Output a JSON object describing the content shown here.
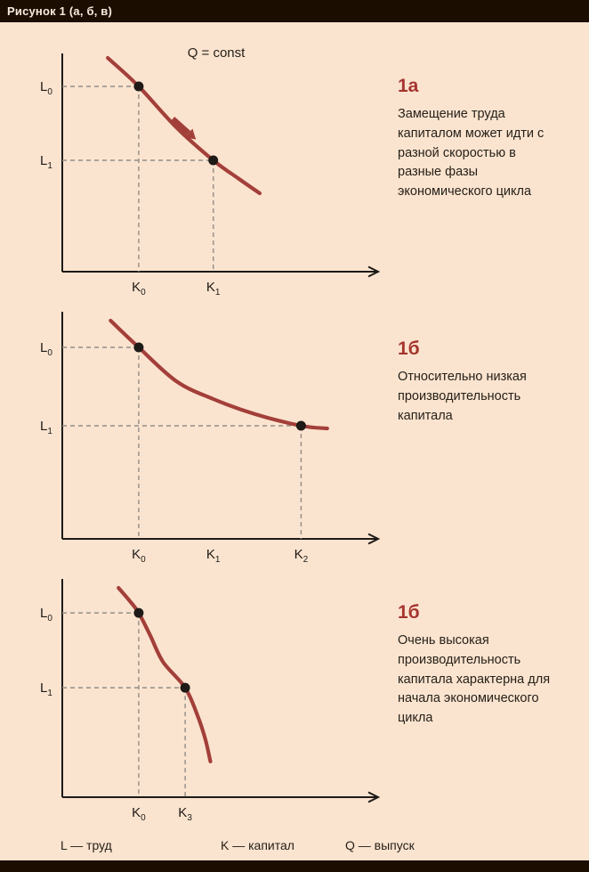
{
  "header": {
    "title": "Рисунок 1 (а, б, в)"
  },
  "legend": {
    "labor": "L — труд",
    "capital": "K — капитал",
    "output": "Q — выпуск"
  },
  "colors": {
    "background": "#fbe4cf",
    "bar": "#1c0d01",
    "curve": "#a33f3a",
    "point": "#1e1a17",
    "dash": "#928d88",
    "axis": "#1e1a17",
    "tag": "#a5342f",
    "text": "#262019"
  },
  "chart_data": [
    {
      "type": "line",
      "title": "Q = const",
      "xlabel": "K",
      "ylabel": "L",
      "x_tick_labels": [
        "K0",
        "K1"
      ],
      "y_tick_labels": [
        "L0",
        "L1"
      ],
      "note_tag": "1а",
      "note": "Замещение труда капиталом может идти с разной скоростью в разные фазы экономического цикла",
      "curve": [
        [
          0.144,
          0.04
        ],
        [
          0.242,
          0.168
        ],
        [
          0.361,
          0.352
        ],
        [
          0.478,
          0.5
        ],
        [
          0.556,
          0.58
        ],
        [
          0.625,
          0.648
        ]
      ],
      "points": [
        {
          "x": 0.242,
          "y": 0.168,
          "x_label": {
            "base": "K",
            "sub": "0"
          },
          "y_label": {
            "base": "L",
            "sub": "0"
          }
        },
        {
          "x": 0.478,
          "y": 0.5,
          "x_label": {
            "base": "K",
            "sub": "1"
          },
          "y_label": {
            "base": "L",
            "sub": "1"
          }
        }
      ],
      "extra_x_ticks": [],
      "arrow": {
        "x": 0.375,
        "y": 0.345,
        "angle_deg": 42
      }
    },
    {
      "type": "line",
      "title": "",
      "xlabel": "K",
      "ylabel": "L",
      "x_tick_labels": [
        "K0",
        "K1",
        "K2"
      ],
      "y_tick_labels": [
        "L0",
        "L1"
      ],
      "note_tag": "1б",
      "note": "Относительно низкая производительность капитала",
      "curve": [
        [
          0.153,
          0.02
        ],
        [
          0.242,
          0.14
        ],
        [
          0.361,
          0.292
        ],
        [
          0.478,
          0.372
        ],
        [
          0.611,
          0.44
        ],
        [
          0.756,
          0.492
        ],
        [
          0.839,
          0.504
        ]
      ],
      "points": [
        {
          "x": 0.242,
          "y": 0.14,
          "x_label": {
            "base": "K",
            "sub": "0"
          },
          "y_label": {
            "base": "L",
            "sub": "0"
          }
        },
        {
          "x": 0.756,
          "y": 0.492,
          "x_label": {
            "base": "K",
            "sub": "2"
          },
          "y_label": {
            "base": "L",
            "sub": "1"
          }
        }
      ],
      "extra_x_ticks": [
        {
          "x": 0.478,
          "label": {
            "base": "K",
            "sub": "1"
          }
        }
      ],
      "arrow": null
    },
    {
      "type": "line",
      "title": "",
      "xlabel": "K",
      "ylabel": "L",
      "x_tick_labels": [
        "K0",
        "K3"
      ],
      "y_tick_labels": [
        "L0",
        "L1"
      ],
      "note_tag": "1б",
      "note": "Очень высокая производительность капитала характерна для начала экономического цикла",
      "curve": [
        [
          0.178,
          0.021
        ],
        [
          0.214,
          0.083
        ],
        [
          0.242,
          0.138
        ],
        [
          0.278,
          0.242
        ],
        [
          0.319,
          0.367
        ],
        [
          0.389,
          0.488
        ],
        [
          0.428,
          0.617
        ],
        [
          0.453,
          0.729
        ],
        [
          0.469,
          0.833
        ]
      ],
      "points": [
        {
          "x": 0.242,
          "y": 0.138,
          "x_label": {
            "base": "K",
            "sub": "0"
          },
          "y_label": {
            "base": "L",
            "sub": "0"
          }
        },
        {
          "x": 0.389,
          "y": 0.488,
          "x_label": {
            "base": "K",
            "sub": "3"
          },
          "y_label": {
            "base": "L",
            "sub": "1"
          }
        }
      ],
      "extra_x_ticks": [],
      "arrow": null
    }
  ]
}
